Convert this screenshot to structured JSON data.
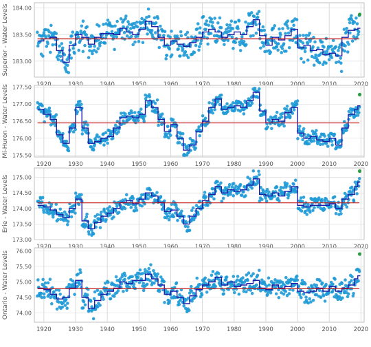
{
  "colors": {
    "background": "#ffffff",
    "grid": "#d9d9d9",
    "axis": "#bfbfbf",
    "tick_text": "#555555",
    "points": "#1e9ad6",
    "annual_step": "#1f1fa8",
    "average_line": "#c41f1f",
    "latest_point": "#2e9e44"
  },
  "chart_data": [
    {
      "type": "scatter",
      "title": "",
      "ylabel": "Superior - Water Levels",
      "xlabel": "",
      "xlim": [
        1917,
        2021
      ],
      "ylim": [
        182.7,
        184.1
      ],
      "xticks": [
        1920,
        1930,
        1940,
        1950,
        1960,
        1970,
        1980,
        1990,
        2000,
        2010,
        2020
      ],
      "yticks": [
        183.0,
        183.5,
        184.0
      ],
      "ytick_labels": [
        "183.00",
        "183.50",
        "184.00"
      ],
      "long_term_average": 183.42,
      "grid": true,
      "series": [
        {
          "name": "",
          "kind": "monthly-points",
          "spread": 0.24,
          "seed": 11
        },
        {
          "name": "",
          "kind": "annual-average-step",
          "x": [
            1918,
            1920,
            1922,
            1924,
            1926,
            1928,
            1930,
            1932,
            1934,
            1936,
            1938,
            1940,
            1942,
            1944,
            1946,
            1948,
            1950,
            1952,
            1954,
            1956,
            1958,
            1960,
            1962,
            1964,
            1966,
            1968,
            1970,
            1972,
            1974,
            1976,
            1978,
            1980,
            1982,
            1984,
            1986,
            1988,
            1990,
            1992,
            1994,
            1996,
            1998,
            2000,
            2002,
            2004,
            2006,
            2008,
            2010,
            2012,
            2014,
            2016,
            2018,
            2019
          ],
          "y": [
            183.38,
            183.42,
            183.45,
            183.2,
            182.98,
            183.3,
            183.5,
            183.45,
            183.32,
            183.45,
            183.52,
            183.52,
            183.5,
            183.62,
            183.55,
            183.5,
            183.6,
            183.75,
            183.65,
            183.45,
            183.3,
            183.38,
            183.32,
            183.28,
            183.35,
            183.45,
            183.55,
            183.6,
            183.55,
            183.45,
            183.5,
            183.55,
            183.5,
            183.65,
            183.78,
            183.48,
            183.3,
            183.45,
            183.4,
            183.48,
            183.6,
            183.25,
            183.3,
            183.2,
            183.22,
            183.12,
            183.15,
            183.1,
            183.45,
            183.58,
            183.6,
            183.62
          ]
        },
        {
          "name": "",
          "kind": "latest-observation",
          "x": [
            2019.6
          ],
          "y": [
            183.88
          ]
        }
      ]
    },
    {
      "type": "scatter",
      "title": "",
      "ylabel": "Mi-Huron - Water Levels",
      "xlabel": "",
      "xlim": [
        1917,
        2021
      ],
      "ylim": [
        175.45,
        177.55
      ],
      "xticks": [
        1920,
        1930,
        1940,
        1950,
        1960,
        1970,
        1980,
        1990,
        2000,
        2010,
        2020
      ],
      "yticks": [
        175.5,
        176.0,
        176.5,
        177.0,
        177.5
      ],
      "ytick_labels": [
        "175.50",
        "176.00",
        "176.50",
        "177.00",
        "177.50"
      ],
      "long_term_average": 176.45,
      "grid": true,
      "series": [
        {
          "name": "",
          "kind": "monthly-points",
          "spread": 0.18,
          "seed": 23
        },
        {
          "name": "",
          "kind": "annual-average-step",
          "x": [
            1918,
            1920,
            1922,
            1924,
            1926,
            1928,
            1930,
            1932,
            1934,
            1936,
            1938,
            1940,
            1942,
            1944,
            1946,
            1948,
            1950,
            1952,
            1954,
            1956,
            1958,
            1960,
            1962,
            1964,
            1966,
            1968,
            1970,
            1972,
            1974,
            1976,
            1978,
            1980,
            1982,
            1984,
            1986,
            1988,
            1990,
            1992,
            1994,
            1996,
            1998,
            2000,
            2002,
            2004,
            2006,
            2008,
            2010,
            2012,
            2014,
            2016,
            2018,
            2019
          ],
          "y": [
            176.85,
            176.7,
            176.55,
            176.1,
            175.85,
            176.3,
            176.9,
            176.3,
            175.85,
            175.9,
            176.0,
            176.05,
            176.3,
            176.6,
            176.65,
            176.6,
            176.7,
            177.1,
            176.9,
            176.55,
            176.2,
            176.4,
            176.0,
            175.65,
            175.8,
            176.2,
            176.5,
            176.9,
            177.15,
            176.85,
            176.9,
            176.95,
            176.9,
            177.1,
            177.35,
            176.8,
            176.45,
            176.55,
            176.5,
            176.75,
            176.9,
            176.15,
            176.0,
            176.05,
            175.95,
            175.9,
            176.0,
            175.8,
            176.3,
            176.7,
            176.85,
            176.95
          ],
          "_note": ""
        },
        {
          "name": "",
          "kind": "latest-observation",
          "x": [
            2019.6
          ],
          "y": [
            177.28
          ]
        }
      ]
    },
    {
      "type": "scatter",
      "title": "",
      "ylabel": "Erie - Water Levels",
      "xlabel": "",
      "xlim": [
        1917,
        2021
      ],
      "ylim": [
        173.0,
        175.3
      ],
      "xticks": [
        1920,
        1930,
        1940,
        1950,
        1960,
        1970,
        1980,
        1990,
        2000,
        2010,
        2020
      ],
      "yticks": [
        173.0,
        173.5,
        174.0,
        174.5,
        175.0
      ],
      "ytick_labels": [
        "173.00",
        "173.50",
        "174.00",
        "174.50",
        "175.00"
      ],
      "long_term_average": 174.18,
      "grid": true,
      "series": [
        {
          "name": "",
          "kind": "monthly-points",
          "spread": 0.22,
          "seed": 37
        },
        {
          "name": "",
          "kind": "annual-average-step",
          "x": [
            1918,
            1920,
            1922,
            1924,
            1926,
            1928,
            1930,
            1932,
            1934,
            1936,
            1938,
            1940,
            1942,
            1944,
            1946,
            1948,
            1950,
            1952,
            1954,
            1956,
            1958,
            1960,
            1962,
            1964,
            1966,
            1968,
            1970,
            1972,
            1974,
            1976,
            1978,
            1980,
            1982,
            1984,
            1986,
            1988,
            1990,
            1992,
            1994,
            1996,
            1998,
            2000,
            2002,
            2004,
            2006,
            2008,
            2010,
            2012,
            2014,
            2016,
            2018,
            2019
          ],
          "y": [
            174.1,
            174.05,
            173.95,
            173.8,
            173.7,
            174.0,
            174.3,
            173.6,
            173.35,
            173.55,
            173.75,
            173.85,
            174.0,
            174.2,
            174.25,
            174.15,
            174.3,
            174.5,
            174.4,
            174.2,
            173.9,
            173.95,
            173.75,
            173.5,
            173.75,
            174.0,
            174.25,
            174.45,
            174.7,
            174.5,
            174.6,
            174.55,
            174.6,
            174.75,
            174.95,
            174.45,
            174.4,
            174.5,
            174.4,
            174.55,
            174.7,
            174.1,
            174.05,
            174.1,
            174.1,
            174.1,
            174.15,
            174.0,
            174.3,
            174.45,
            174.7,
            174.85
          ]
        },
        {
          "name": "",
          "kind": "latest-observation",
          "x": [
            2019.6
          ],
          "y": [
            175.2
          ]
        }
      ]
    },
    {
      "type": "scatter",
      "title": "",
      "ylabel": "Ontario - Water Levels",
      "xlabel": "",
      "xlim": [
        1917,
        2021
      ],
      "ylim": [
        73.7,
        76.1
      ],
      "xticks": [
        1920,
        1930,
        1940,
        1950,
        1960,
        1970,
        1980,
        1990,
        2000,
        2010,
        2020
      ],
      "yticks": [
        74.0,
        74.5,
        75.0,
        75.5,
        76.0
      ],
      "ytick_labels": [
        "74.00",
        "74.50",
        "75.00",
        "75.50",
        "76.00"
      ],
      "long_term_average": 74.78,
      "grid": true,
      "series": [
        {
          "name": "",
          "kind": "monthly-points",
          "spread": 0.3,
          "seed": 53
        },
        {
          "name": "",
          "kind": "annual-average-step",
          "x": [
            1918,
            1920,
            1922,
            1924,
            1926,
            1928,
            1930,
            1932,
            1934,
            1936,
            1938,
            1940,
            1942,
            1944,
            1946,
            1948,
            1950,
            1952,
            1954,
            1956,
            1958,
            1960,
            1962,
            1964,
            1966,
            1968,
            1970,
            1972,
            1974,
            1976,
            1978,
            1980,
            1982,
            1984,
            1986,
            1988,
            1990,
            1992,
            1994,
            1996,
            1998,
            2000,
            2002,
            2004,
            2006,
            2008,
            2010,
            2012,
            2014,
            2016,
            2018,
            2019
          ],
          "y": [
            74.8,
            74.75,
            74.6,
            74.45,
            74.5,
            74.8,
            75.05,
            74.5,
            74.15,
            74.4,
            74.6,
            74.7,
            74.8,
            75.0,
            74.95,
            75.05,
            75.05,
            75.25,
            75.1,
            74.9,
            74.6,
            74.7,
            74.5,
            74.3,
            74.55,
            74.75,
            74.9,
            75.0,
            75.15,
            74.9,
            75.0,
            74.85,
            74.9,
            74.95,
            75.05,
            74.8,
            74.75,
            74.9,
            74.8,
            74.85,
            74.95,
            74.7,
            74.65,
            74.7,
            74.8,
            74.7,
            74.85,
            74.7,
            74.8,
            74.9,
            75.1,
            75.2
          ]
        },
        {
          "name": "",
          "kind": "latest-observation",
          "x": [
            2019.6
          ],
          "y": [
            75.9
          ]
        }
      ]
    }
  ]
}
